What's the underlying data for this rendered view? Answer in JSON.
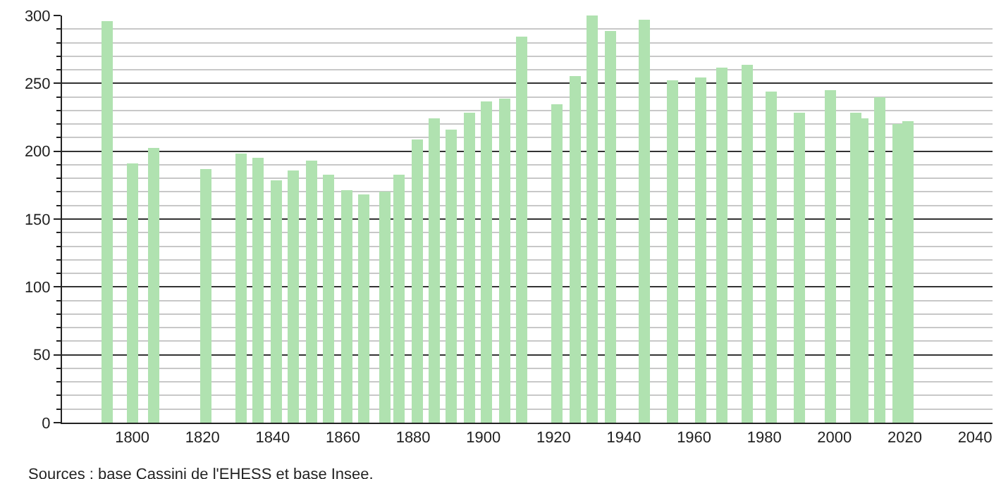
{
  "chart_data": {
    "type": "bar",
    "x": [
      1793,
      1800,
      1806,
      1821,
      1831,
      1836,
      1841,
      1846,
      1851,
      1856,
      1861,
      1866,
      1872,
      1876,
      1881,
      1886,
      1891,
      1896,
      1901,
      1906,
      1911,
      1921,
      1926,
      1931,
      1936,
      1946,
      1954,
      1962,
      1968,
      1975,
      1982,
      1990,
      1999,
      2006,
      2008,
      2013,
      2018,
      2021
    ],
    "values": [
      296,
      191,
      202,
      187,
      198,
      195,
      179,
      186,
      193,
      183,
      171,
      168,
      170,
      183,
      209,
      224,
      216,
      228,
      237,
      239,
      284,
      235,
      255,
      300,
      289,
      297,
      252,
      254,
      262,
      264,
      244,
      228,
      245,
      228,
      224,
      240,
      220,
      222
    ],
    "color": "#b0e2b0",
    "xlim": [
      1780,
      2045
    ],
    "xticks": [
      1800,
      1820,
      1840,
      1860,
      1880,
      1900,
      1920,
      1940,
      1960,
      1980,
      2000,
      2020,
      2040
    ],
    "ylim": [
      0,
      300
    ],
    "yticks": [
      0,
      50,
      100,
      150,
      200,
      250,
      300
    ],
    "grid": "y",
    "legend": false,
    "annotations": [
      "Sources : base Cassini de l'EHESS et base Insee."
    ]
  }
}
